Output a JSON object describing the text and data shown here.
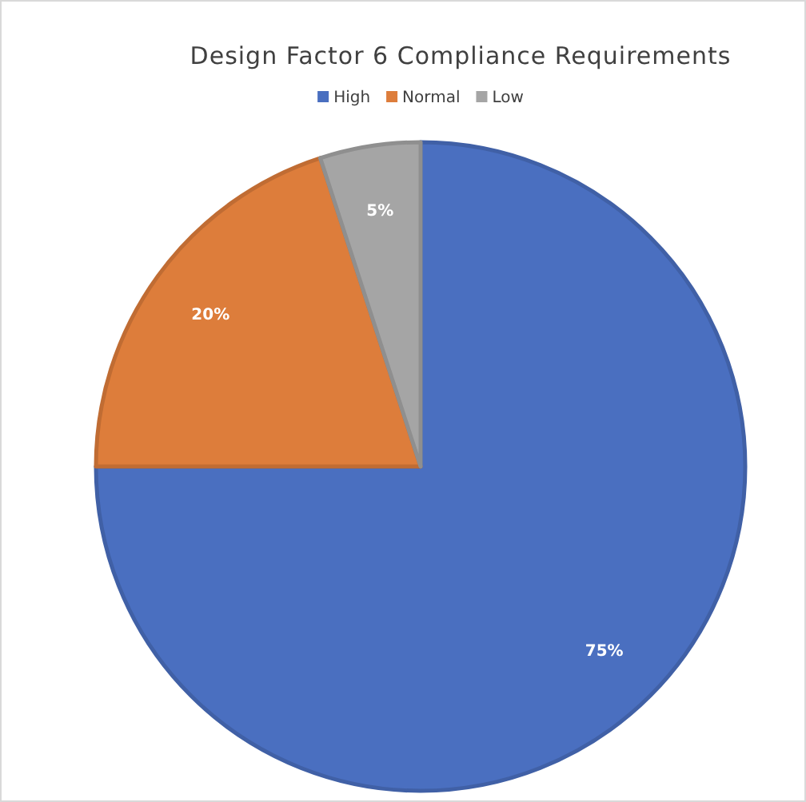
{
  "chart_data": {
    "type": "pie",
    "title": "Design Factor 6 Compliance Requirements",
    "categories": [
      "High",
      "Normal",
      "Low"
    ],
    "values": [
      75,
      20,
      5
    ],
    "colors": [
      "#4a6fc0",
      "#dd7d3b",
      "#a5a5a5"
    ],
    "value_labels": [
      "75%",
      "20%",
      "5%"
    ],
    "legend": "top"
  }
}
